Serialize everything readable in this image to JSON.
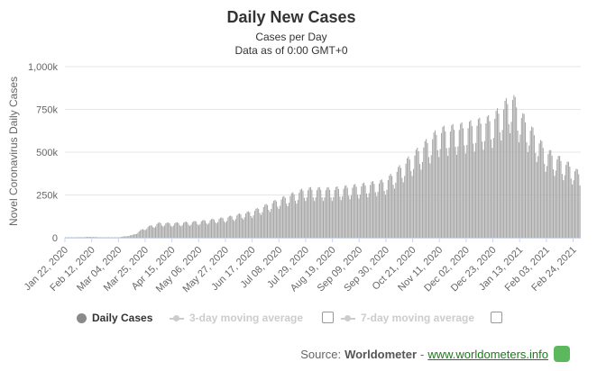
{
  "chart_data": {
    "type": "bar",
    "title": "Daily New Cases",
    "subtitles": [
      "Cases per Day",
      "Data as of 0:00 GMT+0"
    ],
    "ylabel": "Novel Coronavirus Daily Cases",
    "ylim": [
      0,
      1000000
    ],
    "yticks": [
      0,
      250000,
      500000,
      750000,
      1000000
    ],
    "ytick_labels": [
      "0",
      "250k",
      "500k",
      "750k",
      "1,000k"
    ],
    "x_start": "2020-01-22",
    "x_end": "2021-03-02",
    "xtick_labels": [
      "Jan 22, 2020",
      "Feb 12, 2020",
      "Mar 04, 2020",
      "Mar 25, 2020",
      "Apr 15, 2020",
      "May 06, 2020",
      "May 27, 2020",
      "Jun 17, 2020",
      "Jul 08, 2020",
      "Jul 29, 2020",
      "Aug 19, 2020",
      "Sep 09, 2020",
      "Sep 30, 2020",
      "Oct 21, 2020",
      "Nov 11, 2020",
      "Dec 02, 2020",
      "Dec 23, 2020",
      "Jan 13, 2021",
      "Feb 03, 2021",
      "Feb 24, 2021"
    ],
    "trend": [
      [
        "2020-01-22",
        500
      ],
      [
        "2020-02-12",
        5000
      ],
      [
        "2020-02-20",
        1200
      ],
      [
        "2020-03-04",
        2500
      ],
      [
        "2020-03-15",
        15000
      ],
      [
        "2020-03-25",
        55000
      ],
      [
        "2020-04-05",
        80000
      ],
      [
        "2020-04-15",
        78000
      ],
      [
        "2020-05-06",
        88000
      ],
      [
        "2020-05-27",
        108000
      ],
      [
        "2020-06-17",
        142000
      ],
      [
        "2020-07-08",
        205000
      ],
      [
        "2020-07-29",
        262000
      ],
      [
        "2020-08-19",
        262000
      ],
      [
        "2020-09-09",
        280000
      ],
      [
        "2020-09-30",
        305000
      ],
      [
        "2020-10-21",
        440000
      ],
      [
        "2020-11-11",
        575000
      ],
      [
        "2020-12-02",
        600000
      ],
      [
        "2020-12-23",
        640000
      ],
      [
        "2021-01-08",
        760000
      ],
      [
        "2021-01-13",
        680000
      ],
      [
        "2021-02-03",
        470000
      ],
      [
        "2021-02-24",
        380000
      ],
      [
        "2021-03-02",
        340000
      ]
    ],
    "legend": [
      {
        "label": "Daily Cases",
        "active": true,
        "color": "#8a8a8a"
      },
      {
        "label": "3-day moving average",
        "active": false,
        "color": "#cccccc"
      },
      {
        "label": "7-day moving average",
        "active": false,
        "color": "#cccccc"
      }
    ],
    "bar_color": "#a6a6a6",
    "grid": true,
    "legend_position": "bottom"
  },
  "source": {
    "prefix": "Source:",
    "name": "Worldometer",
    "separator": "-",
    "link": "www.worldometers.info",
    "logo_color": "#5cb85c"
  }
}
